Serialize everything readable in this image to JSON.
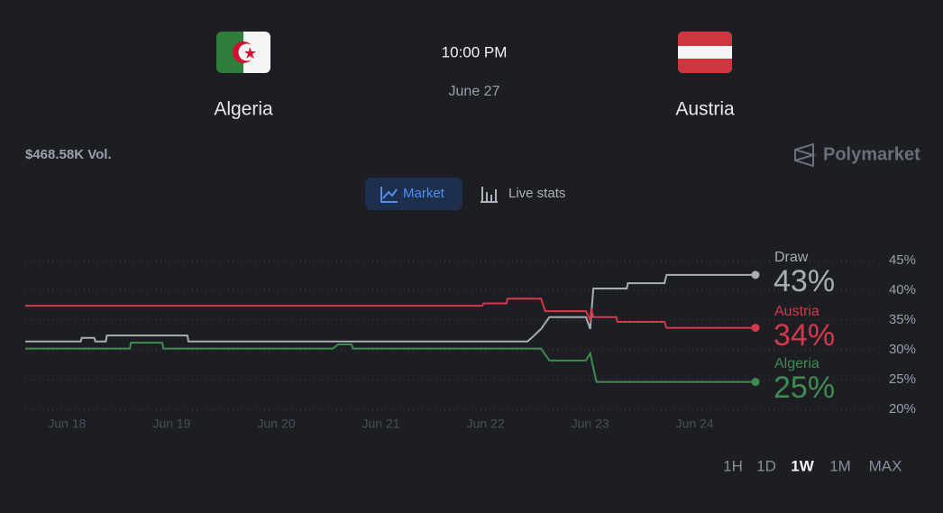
{
  "match": {
    "home": "Algeria",
    "time": "10:00 PM",
    "date": "June 27",
    "away": "Austria"
  },
  "volume": "$468.58K Vol.",
  "brand": "Polymarket",
  "tabs": {
    "items": [
      "Market",
      "Live stats"
    ],
    "active": "Market"
  },
  "ranges": {
    "items": [
      "1H",
      "1D",
      "1W",
      "1M",
      "MAX"
    ],
    "active": "1W"
  },
  "chart_data": {
    "type": "line",
    "ylim": [
      20,
      45
    ],
    "yticks": [
      {
        "value": 20,
        "label": "20%"
      },
      {
        "value": 25,
        "label": "25%"
      },
      {
        "value": 30,
        "label": "30%"
      },
      {
        "value": 35,
        "label": "35%"
      },
      {
        "value": 40,
        "label": "40%"
      },
      {
        "value": 45,
        "label": "45%"
      }
    ],
    "xlim": [
      17.6,
      24.58
    ],
    "xticks": [
      {
        "value": 18,
        "label": "Jun 18"
      },
      {
        "value": 19,
        "label": "Jun 19"
      },
      {
        "value": 20,
        "label": "Jun 20"
      },
      {
        "value": 21,
        "label": "Jun 21"
      },
      {
        "value": 22,
        "label": "Jun 22"
      },
      {
        "value": 23,
        "label": "Jun 23"
      },
      {
        "value": 24,
        "label": "Jun 24"
      }
    ],
    "grid": true,
    "series": [
      {
        "name": "Draw",
        "color": "#a9adb4",
        "last_label": "43%",
        "x": [
          17.6,
          18.13,
          18.14,
          18.26,
          18.27,
          18.37,
          18.38,
          19.15,
          19.16,
          22.4,
          22.44,
          22.53,
          22.61,
          22.96,
          23.0,
          23.03,
          23.35,
          23.36,
          23.71,
          23.73,
          24.58
        ],
        "values": [
          31.4,
          31.4,
          32.0,
          32.0,
          31.4,
          31.4,
          32.4,
          32.4,
          31.4,
          31.4,
          32.0,
          33.5,
          35.5,
          35.5,
          33.5,
          40.3,
          40.3,
          41.2,
          41.2,
          42.6,
          42.6
        ]
      },
      {
        "name": "Austria",
        "color": "#d23a4b",
        "last_label": "34%",
        "x": [
          17.6,
          21.97,
          21.98,
          22.2,
          22.21,
          22.53,
          22.57,
          22.96,
          23.0,
          23.01,
          23.03,
          23.25,
          23.26,
          23.71,
          23.73,
          24.58
        ],
        "values": [
          37.4,
          37.4,
          37.8,
          37.8,
          38.6,
          38.6,
          36.5,
          36.5,
          35.0,
          37.0,
          35.5,
          35.5,
          34.7,
          34.7,
          33.7,
          33.7
        ]
      },
      {
        "name": "Algeria",
        "color": "#3f8b50",
        "last_label": "25%",
        "x": [
          17.6,
          18.6,
          18.61,
          18.91,
          18.92,
          20.54,
          20.59,
          20.72,
          20.73,
          22.53,
          22.61,
          22.96,
          23.0,
          23.06,
          24.58
        ],
        "values": [
          30.2,
          30.2,
          31.2,
          31.2,
          30.2,
          30.2,
          30.9,
          30.9,
          30.2,
          30.2,
          28.2,
          28.2,
          29.4,
          24.6,
          24.6
        ]
      }
    ]
  }
}
